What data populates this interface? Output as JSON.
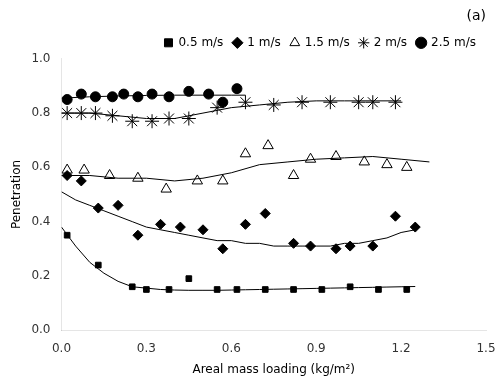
{
  "chart_data": {
    "type": "scatter",
    "title": "(a)",
    "xlabel": "Areal mass loading (kg/m²)",
    "ylabel": "Penetration",
    "xlim": [
      0.0,
      1.5
    ],
    "ylim": [
      0.0,
      1.0
    ],
    "xticks": [
      {
        "value": 0,
        "label": "0.0"
      },
      0.3,
      0.6,
      0.9,
      1.2,
      1.5
    ],
    "yticks": [
      {
        "value": 0,
        "label": "0.0"
      },
      0.2,
      0.4,
      0.6,
      0.8,
      {
        "value": 1,
        "label": "1.0"
      }
    ],
    "grid": false,
    "legend": "upper right",
    "series": [
      {
        "name": "0.5 m/s",
        "marker": "square",
        "color": "black",
        "x": [
          0.02,
          0.13,
          0.25,
          0.3,
          0.38,
          0.45,
          0.55,
          0.62,
          0.72,
          0.82,
          0.92,
          1.02,
          1.12,
          1.22
        ],
        "y": [
          0.35,
          0.24,
          0.16,
          0.15,
          0.15,
          0.19,
          0.15,
          0.15,
          0.15,
          0.15,
          0.15,
          0.16,
          0.15,
          0.15
        ],
        "fit": {
          "x": [
            0.0,
            0.05,
            0.1,
            0.15,
            0.2,
            0.25,
            0.3,
            0.35,
            0.4,
            0.45,
            0.5,
            0.55,
            0.6,
            0.65,
            0.7,
            0.75,
            0.8,
            0.85,
            0.9,
            0.95,
            1.0,
            1.05,
            1.1,
            1.15,
            1.2,
            1.25
          ],
          "y": [
            0.38,
            0.31,
            0.25,
            0.21,
            0.18,
            0.16,
            0.155,
            0.15,
            0.148,
            0.147,
            0.147,
            0.147,
            0.148,
            0.149,
            0.15,
            0.151,
            0.152,
            0.153,
            0.154,
            0.155,
            0.156,
            0.157,
            0.158,
            0.159,
            0.16,
            0.161
          ]
        }
      },
      {
        "name": "1 m/s",
        "marker": "diamond",
        "color": "black",
        "x": [
          0.02,
          0.07,
          0.13,
          0.2,
          0.27,
          0.35,
          0.42,
          0.5,
          0.57,
          0.65,
          0.72,
          0.82,
          0.88,
          0.97,
          1.02,
          1.1,
          1.18,
          1.25
        ],
        "y": [
          0.57,
          0.55,
          0.45,
          0.46,
          0.35,
          0.39,
          0.38,
          0.37,
          0.3,
          0.39,
          0.43,
          0.32,
          0.31,
          0.3,
          0.31,
          0.31,
          0.42,
          0.38
        ],
        "fit": {
          "x": [
            0.0,
            0.05,
            0.1,
            0.15,
            0.2,
            0.25,
            0.3,
            0.35,
            0.4,
            0.45,
            0.5,
            0.55,
            0.6,
            0.65,
            0.7,
            0.75,
            0.8,
            0.85,
            0.9,
            0.95,
            1.0,
            1.05,
            1.1,
            1.15,
            1.2,
            1.25
          ],
          "y": [
            0.51,
            0.48,
            0.46,
            0.44,
            0.42,
            0.4,
            0.38,
            0.37,
            0.36,
            0.35,
            0.34,
            0.33,
            0.33,
            0.32,
            0.32,
            0.31,
            0.31,
            0.31,
            0.31,
            0.31,
            0.32,
            0.32,
            0.33,
            0.34,
            0.36,
            0.37
          ]
        }
      },
      {
        "name": "1.5 m/s",
        "marker": "open triangle",
        "color": "black",
        "x": [
          0.02,
          0.08,
          0.17,
          0.27,
          0.37,
          0.48,
          0.57,
          0.65,
          0.73,
          0.82,
          0.88,
          0.97,
          1.07,
          1.15,
          1.22
        ],
        "y": [
          0.59,
          0.59,
          0.57,
          0.56,
          0.52,
          0.55,
          0.55,
          0.65,
          0.68,
          0.57,
          0.63,
          0.64,
          0.62,
          0.61,
          0.6
        ],
        "fit": {
          "x": [
            0.0,
            0.1,
            0.2,
            0.3,
            0.4,
            0.5,
            0.6,
            0.7,
            0.8,
            0.9,
            1.0,
            1.1,
            1.2,
            1.3
          ],
          "y": [
            0.57,
            0.57,
            0.56,
            0.56,
            0.55,
            0.56,
            0.58,
            0.61,
            0.62,
            0.63,
            0.635,
            0.64,
            0.63,
            0.62
          ]
        }
      },
      {
        "name": "2 m/s",
        "marker": "star",
        "color": "black",
        "x": [
          0.02,
          0.07,
          0.12,
          0.18,
          0.25,
          0.32,
          0.38,
          0.45,
          0.55,
          0.65,
          0.75,
          0.85,
          0.95,
          1.05,
          1.1,
          1.18
        ],
        "y": [
          0.8,
          0.8,
          0.8,
          0.79,
          0.77,
          0.77,
          0.78,
          0.78,
          0.82,
          0.84,
          0.83,
          0.84,
          0.84,
          0.84,
          0.84,
          0.84
        ],
        "fit": {
          "x": [
            0.0,
            0.1,
            0.2,
            0.3,
            0.4,
            0.5,
            0.6,
            0.7,
            0.8,
            0.9,
            1.0,
            1.1,
            1.2
          ],
          "y": [
            0.8,
            0.8,
            0.79,
            0.78,
            0.78,
            0.8,
            0.82,
            0.83,
            0.84,
            0.845,
            0.845,
            0.845,
            0.845
          ]
        }
      },
      {
        "name": "2.5 m/s",
        "marker": "circle",
        "color": "black",
        "x": [
          0.02,
          0.07,
          0.12,
          0.18,
          0.22,
          0.27,
          0.32,
          0.38,
          0.45,
          0.52,
          0.57,
          0.62
        ],
        "y": [
          0.85,
          0.87,
          0.86,
          0.86,
          0.87,
          0.86,
          0.87,
          0.86,
          0.88,
          0.87,
          0.84,
          0.89
        ],
        "fit": {
          "x": [
            0.0,
            0.1,
            0.2,
            0.3,
            0.4,
            0.5,
            0.6,
            0.65
          ],
          "y": [
            0.855,
            0.86,
            0.863,
            0.865,
            0.866,
            0.866,
            0.866,
            0.866
          ]
        }
      }
    ]
  }
}
